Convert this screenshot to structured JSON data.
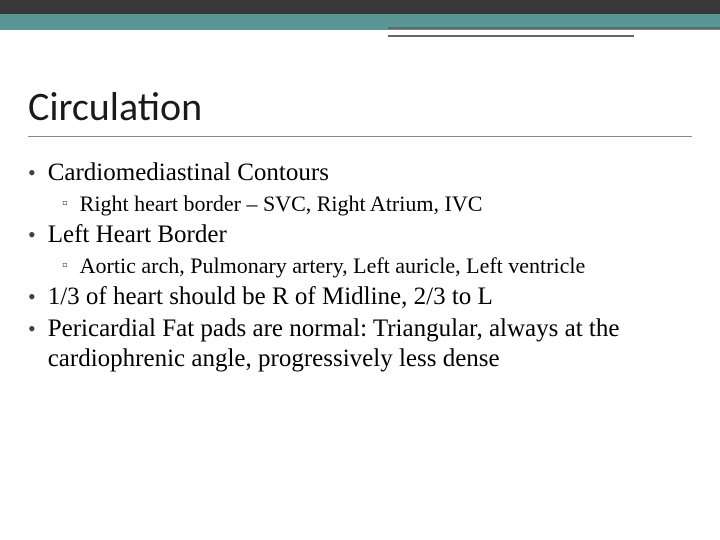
{
  "colors": {
    "top_bar": "#383838",
    "teal_bar": "#5a9693",
    "line": "#666666",
    "rule": "#888888",
    "background": "#ffffff",
    "text": "#000000",
    "bullet_lvl1": "#404040",
    "bullet_lvl2": "#5a5a5a"
  },
  "title_fontsize": 40,
  "lvl1_fontsize": 25,
  "lvl2_fontsize": 22,
  "title_font": "Calibri, Arial, sans-serif",
  "body_font": "Georgia, 'Times New Roman', serif",
  "title": "Circulation",
  "items": [
    {
      "text": "Cardiomediastinal Contours",
      "sub": [
        {
          "text": "Right heart border – SVC, Right Atrium, IVC"
        }
      ]
    },
    {
      "text": "Left Heart Border",
      "sub": [
        {
          "text": "Aortic arch,  Pulmonary artery, Left auricle, Left ventricle"
        }
      ]
    },
    {
      "text": "1/3 of heart should be R of Midline, 2/3 to L",
      "sub": []
    },
    {
      "text": "Pericardial Fat pads are normal:  Triangular, always at the cardiophrenic angle, progressively less dense",
      "sub": []
    }
  ]
}
